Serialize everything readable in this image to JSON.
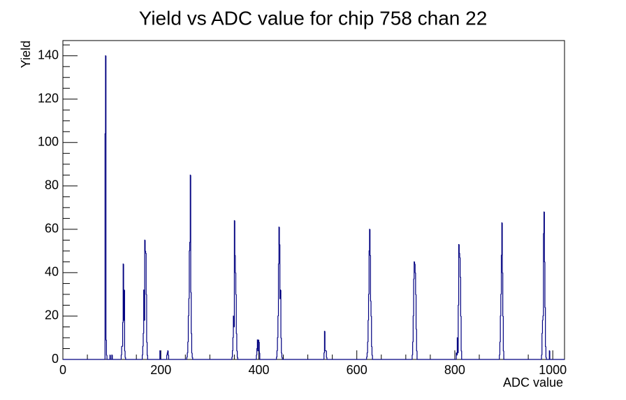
{
  "chart_data": {
    "type": "histogram",
    "title": "Yield vs ADC value for chip 758 chan 22",
    "x_label": "ADC value",
    "y_label": "Yield",
    "color": "#000080",
    "xlim": [
      0,
      1024
    ],
    "ylim": [
      0,
      147
    ],
    "xticks": [
      0,
      200,
      400,
      600,
      800,
      1000
    ],
    "xminorticks": [
      50,
      100,
      150,
      250,
      300,
      350,
      450,
      500,
      550,
      650,
      700,
      750,
      850,
      900,
      950
    ],
    "yticks": [
      0,
      20,
      40,
      60,
      80,
      100,
      120,
      140
    ],
    "yminorticks": [
      5,
      10,
      15,
      25,
      30,
      35,
      45,
      50,
      55,
      65,
      70,
      75,
      85,
      90,
      95,
      105,
      110,
      115,
      125,
      130,
      135,
      145
    ],
    "bins": [
      0,
      86,
      87,
      88,
      89,
      90,
      96,
      97,
      100,
      101,
      119,
      120,
      121,
      122,
      123,
      124,
      125,
      126,
      127,
      128,
      162,
      163,
      164,
      165,
      166,
      167,
      168,
      169,
      170,
      171,
      172,
      173,
      198,
      199,
      212,
      213,
      214,
      215,
      216,
      253,
      254,
      255,
      256,
      257,
      258,
      259,
      260,
      261,
      262,
      263,
      264,
      265,
      345,
      346,
      347,
      348,
      349,
      350,
      351,
      352,
      353,
      354,
      355,
      356,
      357,
      395,
      396,
      397,
      398,
      399,
      400,
      401,
      402,
      436,
      437,
      438,
      439,
      440,
      441,
      442,
      443,
      444,
      445,
      446,
      447,
      448,
      533,
      534,
      535,
      536,
      537,
      538,
      539,
      620,
      621,
      622,
      623,
      624,
      625,
      626,
      627,
      628,
      629,
      630,
      631,
      632,
      713,
      714,
      715,
      716,
      717,
      718,
      719,
      720,
      721,
      722,
      723,
      803,
      804,
      805,
      806,
      807,
      808,
      809,
      810,
      811,
      812,
      813,
      814,
      891,
      892,
      893,
      894,
      895,
      896,
      897,
      898,
      899,
      900,
      977,
      978,
      979,
      980,
      981,
      982,
      983,
      984,
      985,
      986,
      987,
      993,
      994,
      1024
    ],
    "values": [
      0,
      104,
      140,
      9,
      2,
      0,
      2,
      0,
      2,
      0,
      2,
      6,
      6,
      17,
      44,
      18,
      32,
      4,
      1,
      0,
      2,
      6,
      12,
      32,
      18,
      55,
      50,
      49,
      30,
      8,
      2,
      0,
      4,
      0,
      2,
      3,
      4,
      2,
      0,
      1,
      3,
      8,
      20,
      28,
      50,
      54,
      85,
      31,
      12,
      3,
      1,
      0,
      1,
      4,
      10,
      20,
      15,
      64,
      48,
      40,
      30,
      12,
      4,
      1,
      0,
      2,
      5,
      9,
      4,
      9,
      8,
      3,
      0,
      1,
      4,
      10,
      20,
      44,
      61,
      53,
      28,
      32,
      10,
      3,
      1,
      0,
      3,
      13,
      4,
      4,
      4,
      1,
      0,
      1,
      3,
      8,
      18,
      30,
      50,
      60,
      48,
      27,
      20,
      6,
      2,
      0,
      2,
      8,
      20,
      37,
      45,
      44,
      40,
      30,
      14,
      4,
      0,
      3,
      2,
      10,
      3,
      25,
      53,
      49,
      47,
      38,
      20,
      4,
      0,
      2,
      8,
      20,
      30,
      48,
      63,
      40,
      20,
      4,
      0,
      2,
      12,
      18,
      20,
      58,
      68,
      45,
      24,
      6,
      1,
      0,
      4,
      0
    ]
  }
}
